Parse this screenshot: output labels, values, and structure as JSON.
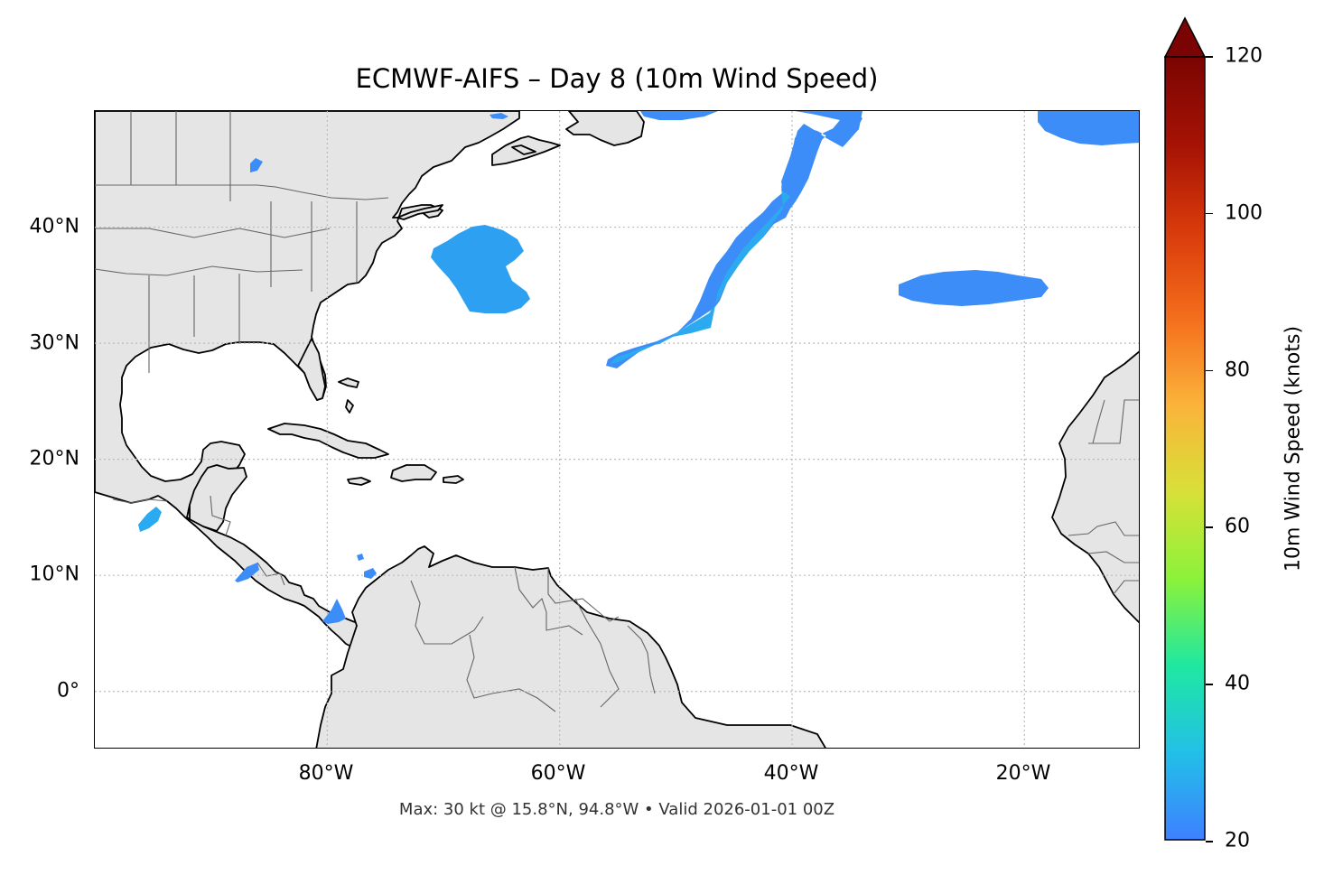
{
  "title": "ECMWF-AIFS – Day 8 (10m Wind Speed)",
  "footer": "Max: 30 kt @ 15.8°N, 94.8°W • Valid 2026-01-01 00Z",
  "map": {
    "lon_range": [
      -100,
      -10
    ],
    "lat_range": [
      -5,
      50
    ],
    "land_color": "#e5e5e5",
    "coast_color": "#000000",
    "border_color": "#666666",
    "grid_color": "#bbbbbb",
    "lat_ticks": [
      {
        "value": 0,
        "label": "0°"
      },
      {
        "value": 10,
        "label": "10°N"
      },
      {
        "value": 20,
        "label": "20°N"
      },
      {
        "value": 30,
        "label": "30°N"
      },
      {
        "value": 40,
        "label": "40°N"
      }
    ],
    "lon_ticks": [
      {
        "value": -80,
        "label": "80°W"
      },
      {
        "value": -60,
        "label": "60°W"
      },
      {
        "value": -40,
        "label": "40°W"
      },
      {
        "value": -20,
        "label": "20°W"
      }
    ],
    "wind_color_low": "#3d8cff",
    "wind_color_mid": "#2aaaf0"
  },
  "colorbar": {
    "label": "10m Wind Speed (knots)",
    "min": 20,
    "max": 120,
    "extend": "max",
    "ticks": [
      {
        "value": 20,
        "label": "20"
      },
      {
        "value": 40,
        "label": "40"
      },
      {
        "value": 60,
        "label": "60"
      },
      {
        "value": 80,
        "label": "80"
      },
      {
        "value": 100,
        "label": "100"
      },
      {
        "value": 120,
        "label": "120"
      }
    ],
    "colors": [
      "#3e80ff",
      "#22c0e8",
      "#1fe8a0",
      "#8cf23a",
      "#d8e038",
      "#fbb33a",
      "#f46d1c",
      "#d83a0b",
      "#a51205",
      "#7a0403"
    ]
  }
}
